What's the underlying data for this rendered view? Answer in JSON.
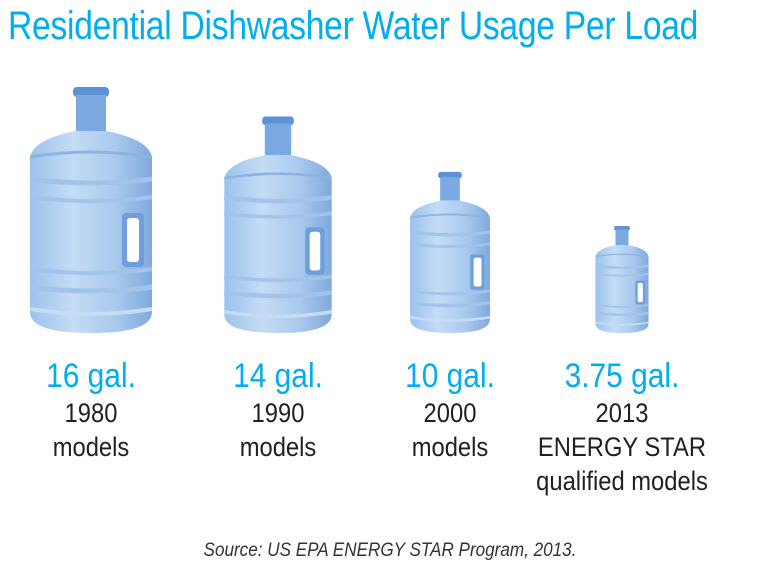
{
  "chart_data": {
    "type": "pictogram",
    "title": "Residential Dishwasher Water Usage Per Load",
    "unit": "gal.",
    "icon": "water-jug-icon",
    "colors": {
      "title": "#00aeef",
      "value": "#00aeef",
      "label": "#231f20",
      "bottle": "#8fb8e6"
    },
    "items": [
      {
        "value": 16,
        "value_label": "16 gal.",
        "label_lines": [
          "1980",
          "models"
        ]
      },
      {
        "value": 14,
        "value_label": "14 gal.",
        "label_lines": [
          "1990",
          "models"
        ]
      },
      {
        "value": 10,
        "value_label": "10 gal.",
        "label_lines": [
          "2000",
          "models"
        ]
      },
      {
        "value": 3.75,
        "value_label": "3.75 gal.",
        "label_lines": [
          "2013",
          "ENERGY STAR",
          "qualified models"
        ]
      }
    ],
    "source": "Source: US EPA ENERGY STAR Program, 2013."
  }
}
